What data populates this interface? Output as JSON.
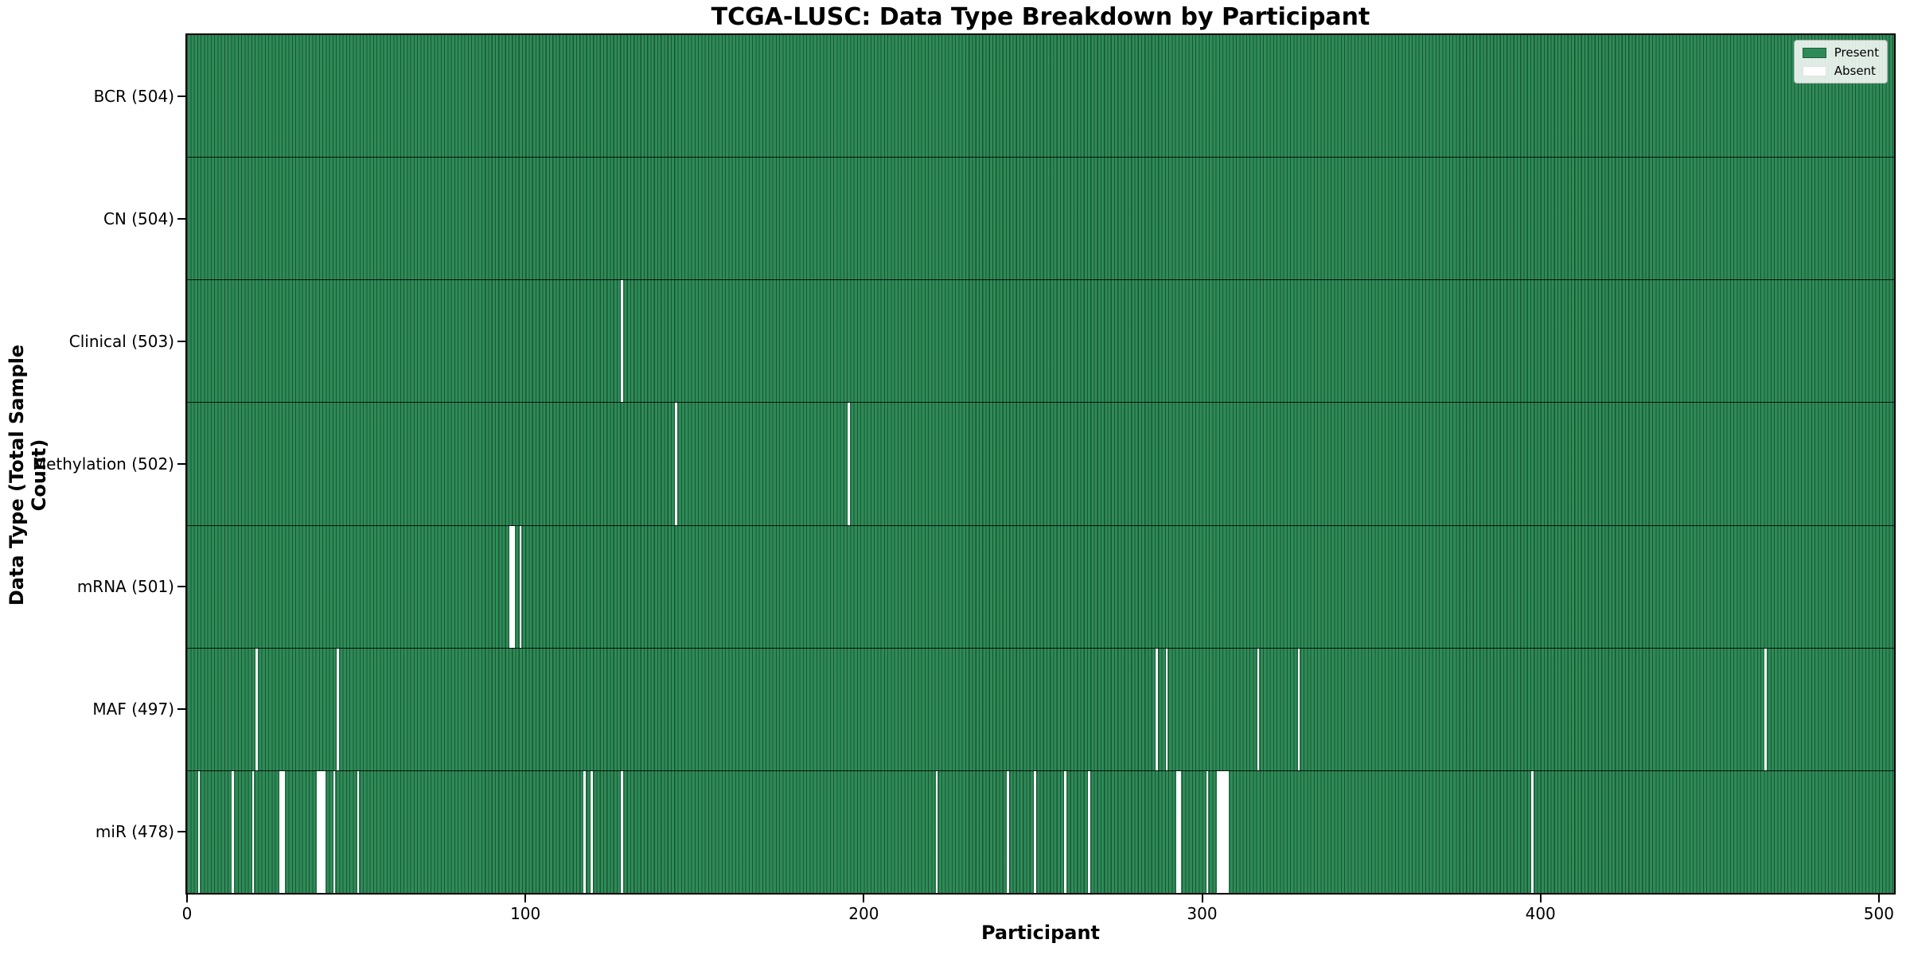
{
  "title": "TCGA-LUSC: Data Type Breakdown by Participant",
  "xlabel": "Participant",
  "ylabel": "Data Type (Total Sample Count)",
  "legend": {
    "present_label": "Present",
    "absent_label": "Absent"
  },
  "colors": {
    "present": "#2E8B57",
    "absent": "#FFFFFF",
    "bar_edge": "rgba(8,40,24,0.55)",
    "separator": "#1a1a1a",
    "spine": "#000000",
    "legend_border": "#b0b0b0"
  },
  "chart_data": {
    "type": "heatmap",
    "title": "TCGA-LUSC: Data Type Breakdown by Participant",
    "xlabel": "Participant",
    "ylabel": "Data Type (Total Sample Count)",
    "legend_entries": [
      "Present",
      "Absent"
    ],
    "legend_position": "upper right",
    "x_ticks": [
      0,
      100,
      200,
      300,
      400,
      500
    ],
    "x_max": 504.5,
    "n_participants": 504,
    "rows": [
      {
        "name": "BCR",
        "label": "BCR (504)",
        "total": 504,
        "absent": []
      },
      {
        "name": "CN",
        "label": "CN (504)",
        "total": 504,
        "absent": []
      },
      {
        "name": "Clinical",
        "label": "Clinical (503)",
        "total": 503,
        "absent": [
          128
        ]
      },
      {
        "name": "Methylation",
        "label": "Methylation (502)",
        "total": 502,
        "absent": [
          144,
          195
        ]
      },
      {
        "name": "mRNA",
        "label": "mRNA (501)",
        "total": 501,
        "absent": [
          95,
          96,
          98
        ]
      },
      {
        "name": "MAF",
        "label": "MAF (497)",
        "total": 497,
        "absent": [
          20,
          44,
          286,
          289,
          316,
          328,
          466
        ]
      },
      {
        "name": "miR",
        "label": "miR (478)",
        "total": 478,
        "absent": [
          3,
          13,
          19,
          27,
          28,
          38,
          39,
          40,
          43,
          50,
          117,
          119,
          128,
          221,
          242,
          250,
          259,
          266,
          292,
          293,
          301,
          304,
          305,
          306,
          307,
          397
        ]
      }
    ]
  }
}
